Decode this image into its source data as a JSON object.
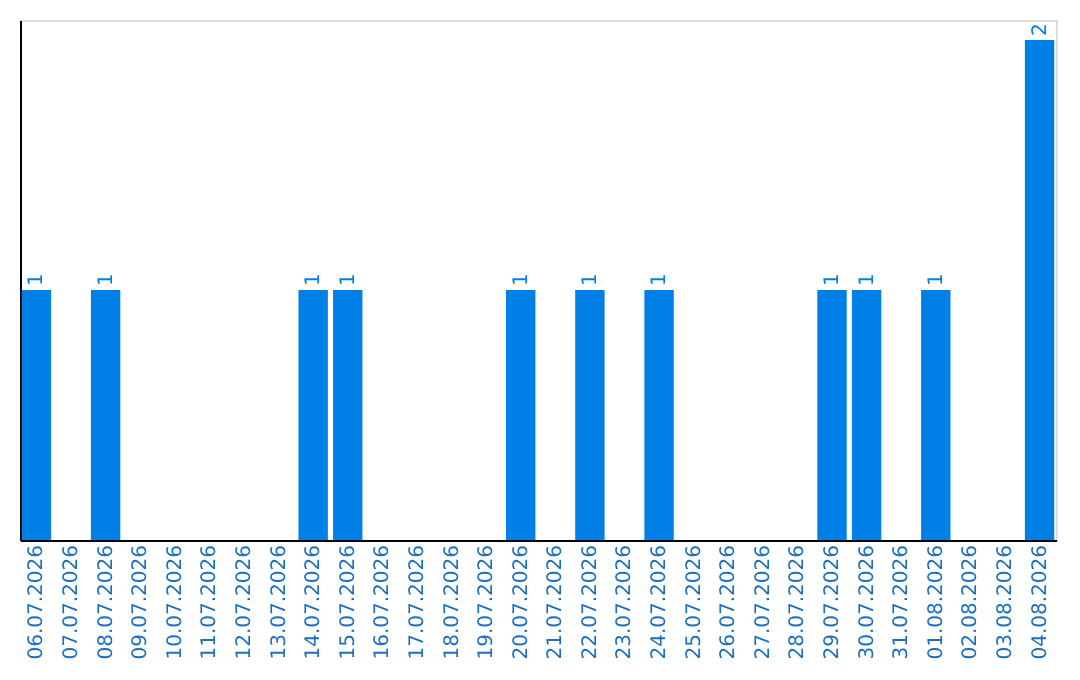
{
  "chart_data": {
    "type": "bar",
    "categories": [
      "06.07.2026",
      "07.07.2026",
      "08.07.2026",
      "09.07.2026",
      "10.07.2026",
      "11.07.2026",
      "12.07.2026",
      "13.07.2026",
      "14.07.2026",
      "15.07.2026",
      "16.07.2026",
      "17.07.2026",
      "18.07.2026",
      "19.07.2026",
      "20.07.2026",
      "21.07.2026",
      "22.07.2026",
      "23.07.2026",
      "24.07.2026",
      "25.07.2026",
      "26.07.2026",
      "27.07.2026",
      "28.07.2026",
      "29.07.2026",
      "30.07.2026",
      "31.07.2026",
      "01.08.2026",
      "02.08.2026",
      "03.08.2026",
      "04.08.2026"
    ],
    "values": [
      1,
      0,
      1,
      0,
      0,
      0,
      0,
      0,
      1,
      1,
      0,
      0,
      0,
      0,
      1,
      0,
      1,
      0,
      1,
      0,
      0,
      0,
      0,
      1,
      1,
      0,
      1,
      0,
      0,
      2
    ],
    "value_labels": [
      "1",
      null,
      "1",
      null,
      null,
      null,
      null,
      null,
      "1",
      "1",
      null,
      null,
      null,
      null,
      "1",
      null,
      "1",
      null,
      "1",
      null,
      null,
      null,
      null,
      "1",
      "1",
      null,
      "1",
      null,
      null,
      "2"
    ],
    "color": "#0080e6",
    "ylim": [
      0,
      2.08
    ],
    "tick_labels": "x",
    "grid": false
  }
}
